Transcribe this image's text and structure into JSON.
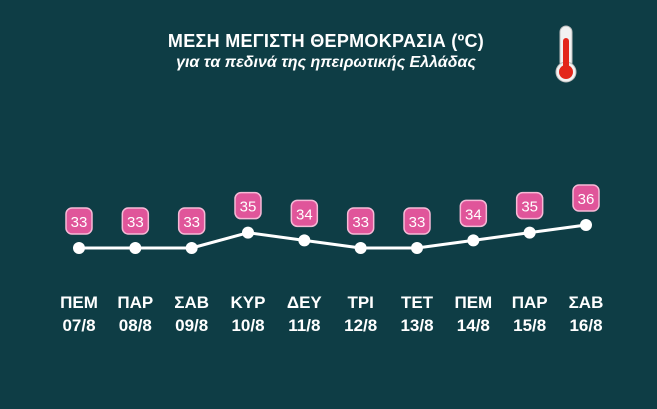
{
  "header": {
    "title": "ΜΕΣΗ ΜΕΓΙΣΤΗ ΘΕΡΜΟΚΡΑΣΙΑ (ºC)",
    "subtitle": "για τα πεδινά της ηπειρωτικής Ελλάδας",
    "icon": "thermometer-icon"
  },
  "colors": {
    "background": "#0e3d45",
    "line": "#ffffff",
    "badge": "#e0559a",
    "text": "#ffffff"
  },
  "chart_data": {
    "type": "line",
    "title": "ΜΕΣΗ ΜΕΓΙΣΤΗ ΘΕΡΜΟΚΡΑΣΙΑ (ºC)",
    "subtitle": "για τα πεδινά της ηπειρωτικής Ελλάδας",
    "categories": [
      {
        "day": "ΠΕΜ",
        "date": "07/8"
      },
      {
        "day": "ΠΑΡ",
        "date": "08/8"
      },
      {
        "day": "ΣΑΒ",
        "date": "09/8"
      },
      {
        "day": "ΚΥΡ",
        "date": "10/8"
      },
      {
        "day": "ΔΕΥ",
        "date": "11/8"
      },
      {
        "day": "ΤΡΙ",
        "date": "12/8"
      },
      {
        "day": "ΤΕΤ",
        "date": "13/8"
      },
      {
        "day": "ΠΕΜ",
        "date": "14/8"
      },
      {
        "day": "ΠΑΡ",
        "date": "15/8"
      },
      {
        "day": "ΣΑΒ",
        "date": "16/8"
      }
    ],
    "values": [
      33,
      33,
      33,
      35,
      34,
      33,
      33,
      34,
      35,
      36
    ],
    "ylim": [
      33,
      36
    ],
    "grid": false,
    "data_labels": true
  }
}
